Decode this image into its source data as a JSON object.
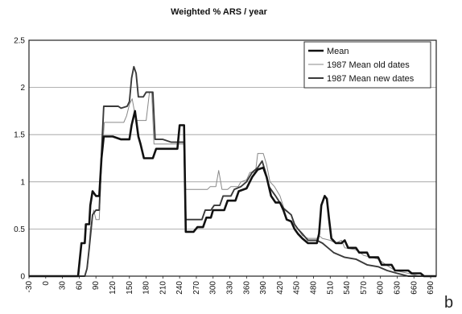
{
  "chart_data": {
    "type": "line",
    "title": "Weighted % ARS / year",
    "xlabel": "",
    "ylabel": "",
    "panel_label": "b",
    "xlim": [
      -30,
      700
    ],
    "ylim": [
      0,
      2.5
    ],
    "x_ticks": [
      -30,
      0,
      30,
      60,
      90,
      120,
      150,
      180,
      210,
      240,
      270,
      300,
      330,
      360,
      390,
      420,
      450,
      480,
      510,
      540,
      570,
      600,
      630,
      660,
      690
    ],
    "y_ticks": [
      0,
      0.5,
      1,
      1.5,
      2,
      2.5
    ],
    "y_tick_labels": [
      "0",
      "0.5",
      "1",
      "1.5",
      "2",
      "2.5"
    ],
    "grid": "horizontal",
    "legend_position": "top-right",
    "series": [
      {
        "name": "Mean",
        "color": "#111111",
        "style": "thick",
        "points": [
          [
            -30,
            0
          ],
          [
            58,
            0
          ],
          [
            64,
            0.35
          ],
          [
            70,
            0.35
          ],
          [
            72,
            0.55
          ],
          [
            78,
            0.55
          ],
          [
            80,
            0.75
          ],
          [
            84,
            0.9
          ],
          [
            90,
            0.85
          ],
          [
            96,
            0.85
          ],
          [
            100,
            1.25
          ],
          [
            104,
            1.48
          ],
          [
            120,
            1.48
          ],
          [
            135,
            1.45
          ],
          [
            150,
            1.45
          ],
          [
            154,
            1.6
          ],
          [
            160,
            1.75
          ],
          [
            166,
            1.48
          ],
          [
            170,
            1.4
          ],
          [
            176,
            1.25
          ],
          [
            192,
            1.25
          ],
          [
            198,
            1.35
          ],
          [
            236,
            1.35
          ],
          [
            240,
            1.6
          ],
          [
            248,
            1.6
          ],
          [
            251,
            0.47
          ],
          [
            265,
            0.47
          ],
          [
            272,
            0.52
          ],
          [
            282,
            0.52
          ],
          [
            288,
            0.62
          ],
          [
            296,
            0.62
          ],
          [
            300,
            0.7
          ],
          [
            320,
            0.7
          ],
          [
            326,
            0.8
          ],
          [
            340,
            0.8
          ],
          [
            346,
            0.9
          ],
          [
            360,
            0.93
          ],
          [
            370,
            1.05
          ],
          [
            380,
            1.13
          ],
          [
            390,
            1.15
          ],
          [
            396,
            1.05
          ],
          [
            404,
            0.85
          ],
          [
            412,
            0.78
          ],
          [
            420,
            0.78
          ],
          [
            426,
            0.7
          ],
          [
            432,
            0.6
          ],
          [
            440,
            0.58
          ],
          [
            446,
            0.5
          ],
          [
            452,
            0.45
          ],
          [
            460,
            0.4
          ],
          [
            470,
            0.35
          ],
          [
            486,
            0.35
          ],
          [
            490,
            0.45
          ],
          [
            494,
            0.75
          ],
          [
            500,
            0.85
          ],
          [
            504,
            0.82
          ],
          [
            508,
            0.6
          ],
          [
            512,
            0.4
          ],
          [
            520,
            0.35
          ],
          [
            530,
            0.35
          ],
          [
            536,
            0.38
          ],
          [
            542,
            0.3
          ],
          [
            556,
            0.3
          ],
          [
            562,
            0.25
          ],
          [
            576,
            0.25
          ],
          [
            580,
            0.2
          ],
          [
            596,
            0.2
          ],
          [
            602,
            0.12
          ],
          [
            620,
            0.12
          ],
          [
            626,
            0.06
          ],
          [
            650,
            0.06
          ],
          [
            656,
            0.03
          ],
          [
            672,
            0.03
          ],
          [
            678,
            0
          ],
          [
            700,
            0
          ]
        ]
      },
      {
        "name": "1987 Mean old dates",
        "color": "#888888",
        "style": "thin",
        "points": [
          [
            -30,
            0
          ],
          [
            70,
            0
          ],
          [
            75,
            0.1
          ],
          [
            80,
            0.5
          ],
          [
            86,
            0.7
          ],
          [
            90,
            0.6
          ],
          [
            96,
            0.6
          ],
          [
            100,
            1.2
          ],
          [
            105,
            1.63
          ],
          [
            140,
            1.63
          ],
          [
            145,
            1.7
          ],
          [
            150,
            1.82
          ],
          [
            155,
            1.88
          ],
          [
            162,
            1.65
          ],
          [
            180,
            1.65
          ],
          [
            186,
            1.95
          ],
          [
            190,
            1.95
          ],
          [
            194,
            1.4
          ],
          [
            240,
            1.4
          ],
          [
            248,
            1.4
          ],
          [
            251,
            0.92
          ],
          [
            290,
            0.92
          ],
          [
            295,
            0.95
          ],
          [
            305,
            0.95
          ],
          [
            310,
            1.12
          ],
          [
            316,
            0.92
          ],
          [
            326,
            0.92
          ],
          [
            332,
            0.95
          ],
          [
            345,
            0.95
          ],
          [
            350,
            1.0
          ],
          [
            360,
            1.02
          ],
          [
            366,
            1.1
          ],
          [
            376,
            1.1
          ],
          [
            380,
            1.3
          ],
          [
            390,
            1.3
          ],
          [
            396,
            1.18
          ],
          [
            402,
            1.0
          ],
          [
            410,
            0.95
          ],
          [
            420,
            0.85
          ],
          [
            428,
            0.7
          ],
          [
            440,
            0.65
          ],
          [
            446,
            0.55
          ],
          [
            452,
            0.5
          ],
          [
            460,
            0.43
          ],
          [
            470,
            0.4
          ],
          [
            486,
            0.4
          ],
          [
            490,
            0.43
          ],
          [
            496,
            0.4
          ],
          [
            510,
            0.38
          ],
          [
            520,
            0.35
          ],
          [
            530,
            0.38
          ],
          [
            536,
            0.3
          ],
          [
            556,
            0.28
          ],
          [
            570,
            0.22
          ],
          [
            596,
            0.18
          ],
          [
            610,
            0.12
          ],
          [
            626,
            0.06
          ],
          [
            650,
            0.03
          ],
          [
            670,
            0
          ],
          [
            700,
            0
          ]
        ]
      },
      {
        "name": "1987 Mean new dates",
        "color": "#3a3a3a",
        "style": "medium",
        "points": [
          [
            -30,
            0
          ],
          [
            70,
            0
          ],
          [
            74,
            0.08
          ],
          [
            78,
            0.3
          ],
          [
            84,
            0.65
          ],
          [
            90,
            0.7
          ],
          [
            96,
            0.7
          ],
          [
            100,
            1.3
          ],
          [
            104,
            1.8
          ],
          [
            130,
            1.8
          ],
          [
            135,
            1.78
          ],
          [
            146,
            1.8
          ],
          [
            150,
            1.85
          ],
          [
            154,
            2.1
          ],
          [
            158,
            2.22
          ],
          [
            162,
            2.15
          ],
          [
            166,
            1.9
          ],
          [
            175,
            1.9
          ],
          [
            180,
            1.95
          ],
          [
            192,
            1.95
          ],
          [
            196,
            1.45
          ],
          [
            210,
            1.45
          ],
          [
            225,
            1.42
          ],
          [
            240,
            1.42
          ],
          [
            248,
            1.42
          ],
          [
            251,
            0.6
          ],
          [
            280,
            0.6
          ],
          [
            286,
            0.7
          ],
          [
            296,
            0.7
          ],
          [
            302,
            0.75
          ],
          [
            312,
            0.75
          ],
          [
            318,
            0.85
          ],
          [
            332,
            0.85
          ],
          [
            338,
            0.92
          ],
          [
            350,
            0.95
          ],
          [
            360,
            1.0
          ],
          [
            370,
            1.1
          ],
          [
            380,
            1.15
          ],
          [
            388,
            1.22
          ],
          [
            394,
            1.1
          ],
          [
            400,
            0.95
          ],
          [
            412,
            0.85
          ],
          [
            426,
            0.72
          ],
          [
            440,
            0.65
          ],
          [
            446,
            0.55
          ],
          [
            452,
            0.5
          ],
          [
            460,
            0.45
          ],
          [
            470,
            0.38
          ],
          [
            486,
            0.38
          ],
          [
            496,
            0.35
          ],
          [
            506,
            0.3
          ],
          [
            516,
            0.25
          ],
          [
            536,
            0.2
          ],
          [
            556,
            0.18
          ],
          [
            576,
            0.12
          ],
          [
            596,
            0.1
          ],
          [
            612,
            0.06
          ],
          [
            630,
            0.03
          ],
          [
            650,
            0
          ],
          [
            700,
            0
          ]
        ]
      }
    ]
  }
}
